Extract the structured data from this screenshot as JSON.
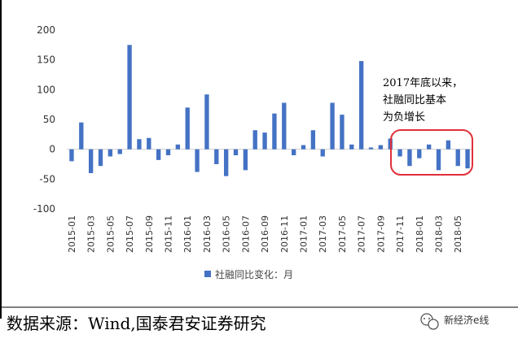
{
  "chart_data": {
    "type": "bar",
    "categories": [
      "2015-01",
      "2015-02",
      "2015-03",
      "2015-04",
      "2015-05",
      "2015-06",
      "2015-07",
      "2015-08",
      "2015-09",
      "2015-10",
      "2015-11",
      "2015-12",
      "2016-01",
      "2016-02",
      "2016-03",
      "2016-04",
      "2016-05",
      "2016-06",
      "2016-07",
      "2016-08",
      "2016-09",
      "2016-10",
      "2016-11",
      "2016-12",
      "2017-01",
      "2017-02",
      "2017-03",
      "2017-04",
      "2017-05",
      "2017-06",
      "2017-07",
      "2017-08",
      "2017-09",
      "2017-10",
      "2017-11",
      "2017-12",
      "2018-01",
      "2018-02",
      "2018-03",
      "2018-04",
      "2018-05",
      "2018-06"
    ],
    "tick_labels": [
      "2015-01",
      "2015-03",
      "2015-05",
      "2015-07",
      "2015-09",
      "2015-11",
      "2016-01",
      "2016-03",
      "2016-05",
      "2016-07",
      "2016-09",
      "2016-11",
      "2017-01",
      "2017-03",
      "2017-05",
      "2017-07",
      "2017-09",
      "2017-11",
      "2018-01",
      "2018-03",
      "2018-05"
    ],
    "series": [
      {
        "name": "社融同比变化：月",
        "color": "#4472C4",
        "values": [
          -20,
          45,
          -40,
          -28,
          -12,
          -8,
          175,
          17,
          19,
          -18,
          -10,
          8,
          70,
          -38,
          92,
          -25,
          -45,
          -10,
          -35,
          32,
          28,
          60,
          78,
          -10,
          7,
          32,
          -12,
          78,
          58,
          8,
          148,
          3,
          7,
          18,
          -12,
          -28,
          -15,
          8,
          -35,
          15,
          -28,
          -32
        ]
      }
    ],
    "ylim": [
      -100,
      200
    ],
    "yticks": [
      -100,
      -50,
      0,
      50,
      100,
      150,
      200
    ],
    "grid": false,
    "legend_position": "bottom",
    "annotation": {
      "lines": [
        "2017年底以来，",
        "社融同比基本",
        "为负增长"
      ],
      "highlight_color": "#E0303A"
    },
    "source": "数据来源：Wind,国泰君安证券研究",
    "watermark": "新经济e线"
  }
}
